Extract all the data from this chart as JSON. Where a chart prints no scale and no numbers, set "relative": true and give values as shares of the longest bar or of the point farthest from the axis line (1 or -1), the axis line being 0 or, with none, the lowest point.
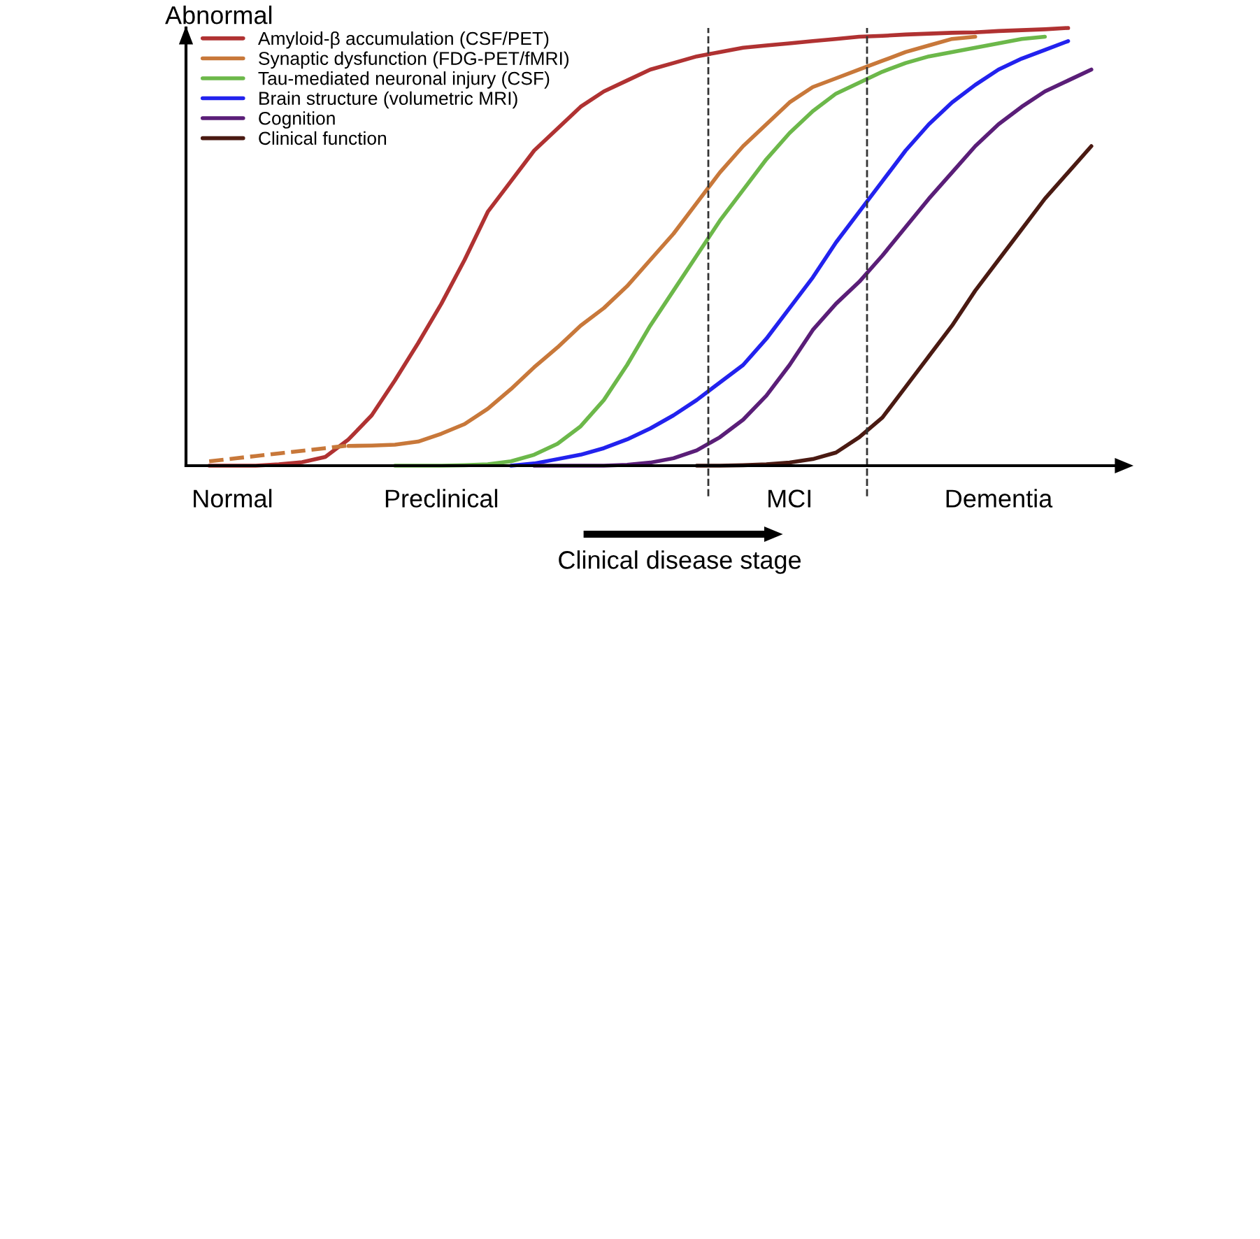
{
  "chart_data": {
    "type": "line",
    "relative": true,
    "ylabel": "Abnormal",
    "categories": [
      null,
      null,
      "Normal",
      null,
      null,
      null,
      null,
      null,
      null,
      null,
      null,
      "Preclinical",
      null,
      null,
      null,
      null,
      null,
      null,
      null,
      null,
      null,
      null,
      null,
      null,
      null,
      null,
      "MCI",
      null,
      null,
      null,
      null,
      null,
      null,
      null,
      null,
      "Dementia",
      null,
      null,
      null,
      null,
      null
    ],
    "series": [
      {
        "name": "Amyloid-β accumulation (CSF/PET)",
        "color": "#b03232",
        "values": [
          null,
          0,
          0,
          0,
          0.003,
          0.008,
          0.02,
          0.06,
          0.115,
          0.195,
          0.28,
          0.37,
          0.47,
          0.58,
          0.65,
          0.72,
          0.77,
          0.82,
          0.855,
          0.88,
          0.905,
          0.92,
          0.935,
          0.945,
          0.955,
          0.96,
          0.965,
          0.97,
          0.975,
          0.98,
          0.982,
          0.985,
          0.987,
          0.989,
          0.99,
          0.993,
          0.995,
          0.997,
          1.0,
          null,
          null
        ]
      },
      {
        "name": "Synaptic dysfunction (FDG-PET/fMRI)",
        "color": "#c8783a",
        "values": [
          null,
          null,
          null,
          null,
          null,
          null,
          null,
          0.045,
          0.046,
          0.048,
          0.055,
          0.073,
          0.095,
          0.13,
          0.175,
          0.225,
          0.27,
          0.32,
          0.36,
          0.41,
          0.47,
          0.53,
          0.6,
          0.67,
          0.73,
          0.78,
          0.83,
          0.865,
          0.885,
          0.905,
          0.925,
          0.945,
          0.96,
          0.975,
          0.98,
          null,
          null,
          null,
          null,
          null,
          null
        ]
      },
      {
        "color": "#c8783a",
        "line_style": "dashed",
        "values": [
          null,
          0.01,
          0.016,
          0.022,
          0.028,
          0.034,
          0.04,
          0.046,
          null,
          null,
          null,
          null,
          null,
          null,
          null,
          null,
          null,
          null,
          null,
          null,
          null,
          null,
          null,
          null,
          null,
          null,
          null,
          null,
          null,
          null,
          null,
          null,
          null,
          null,
          null,
          null,
          null,
          null,
          null,
          null,
          null
        ]
      },
      {
        "name": "Tau-mediated neuronal injury (CSF)",
        "color": "#6cb84a",
        "values": [
          null,
          null,
          null,
          null,
          null,
          null,
          null,
          null,
          null,
          0,
          0,
          0,
          0.001,
          0.003,
          0.01,
          0.025,
          0.05,
          0.09,
          0.15,
          0.23,
          0.32,
          0.4,
          0.48,
          0.56,
          0.63,
          0.7,
          0.76,
          0.81,
          0.85,
          0.875,
          0.9,
          0.92,
          0.935,
          0.945,
          0.955,
          0.965,
          0.975,
          0.98,
          null,
          null,
          null
        ]
      },
      {
        "name": "Brain structure (volumetric MRI)",
        "color": "#2222ee",
        "values": [
          null,
          null,
          null,
          null,
          null,
          null,
          null,
          null,
          null,
          null,
          null,
          null,
          null,
          null,
          0,
          0.005,
          0.015,
          0.025,
          0.04,
          0.06,
          0.085,
          0.115,
          0.15,
          0.19,
          0.23,
          0.29,
          0.36,
          0.43,
          0.51,
          0.58,
          0.65,
          0.72,
          0.78,
          0.83,
          0.87,
          0.905,
          0.93,
          0.95,
          0.97,
          null,
          null
        ]
      },
      {
        "name": "Cognition",
        "color": "#5a1e78",
        "values": [
          null,
          null,
          null,
          null,
          null,
          null,
          null,
          null,
          null,
          null,
          null,
          null,
          null,
          null,
          null,
          0,
          0,
          0,
          0,
          0.002,
          0.007,
          0.017,
          0.035,
          0.065,
          0.105,
          0.16,
          0.23,
          0.31,
          0.37,
          0.42,
          0.48,
          0.545,
          0.61,
          0.67,
          0.73,
          0.78,
          0.82,
          0.855,
          0.88,
          0.905,
          null
        ]
      },
      {
        "name": "Clinical function",
        "color": "#4a1a12",
        "values": [
          null,
          null,
          null,
          null,
          null,
          null,
          null,
          null,
          null,
          null,
          null,
          null,
          null,
          null,
          null,
          null,
          null,
          null,
          null,
          null,
          null,
          null,
          0,
          0,
          0.001,
          0.003,
          0.007,
          0.015,
          0.03,
          0.065,
          0.11,
          0.18,
          0.25,
          0.32,
          0.4,
          0.47,
          0.54,
          0.61,
          0.67,
          0.73,
          null
        ]
      }
    ],
    "annotations": [
      "Clinical disease stage"
    ],
    "legend": "top left",
    "grid": false
  }
}
